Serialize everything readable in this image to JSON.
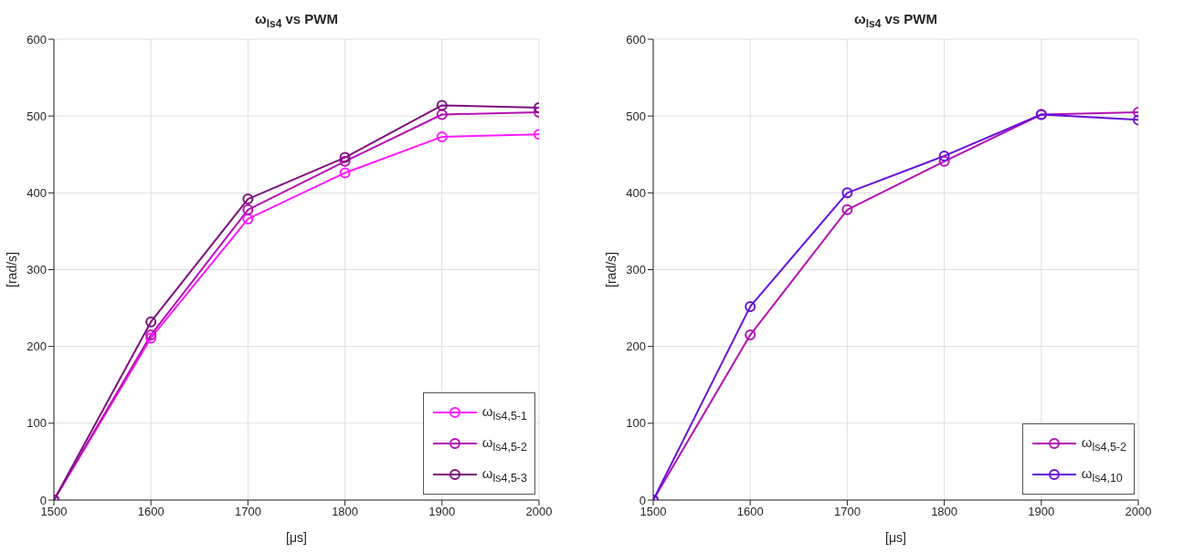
{
  "chart_data": [
    {
      "type": "line",
      "title": "ω$_{ls4}$ vs PWM",
      "xlabel": "[μs]",
      "ylabel": "[rad/s]",
      "x": [
        1500,
        1600,
        1700,
        1800,
        1900,
        2000
      ],
      "xlim": [
        1500,
        2000
      ],
      "xticks": [
        1500,
        1600,
        1700,
        1800,
        1900,
        2000
      ],
      "ylim": [
        0,
        600
      ],
      "yticks": [
        0,
        100,
        200,
        300,
        400,
        500,
        600
      ],
      "grid": true,
      "legend": "bottom right",
      "marker": "circle",
      "line_style": "solid",
      "series": [
        {
          "name": "ω$_{ls4,5-1}$",
          "color": "#ff19ff",
          "values": [
            0,
            211,
            366,
            426,
            473,
            476
          ]
        },
        {
          "name": "ω$_{ls4,5-2}$",
          "color": "#b312b3",
          "values": [
            0,
            215,
            378,
            441,
            502,
            505
          ]
        },
        {
          "name": "ω$_{ls4,5-3}$",
          "color": "#7d0f7d",
          "values": [
            0,
            232,
            392,
            446,
            514,
            511
          ]
        }
      ]
    },
    {
      "type": "line",
      "title": "ω$_{ls4}$ vs PWM",
      "xlabel": "[μs]",
      "ylabel": "[rad/s]",
      "x": [
        1500,
        1600,
        1700,
        1800,
        1900,
        2000
      ],
      "xlim": [
        1500,
        2000
      ],
      "xticks": [
        1500,
        1600,
        1700,
        1800,
        1900,
        2000
      ],
      "ylim": [
        0,
        600
      ],
      "yticks": [
        0,
        100,
        200,
        300,
        400,
        500,
        600
      ],
      "grid": true,
      "legend": "bottom right",
      "marker": "circle",
      "line_style": "solid",
      "series": [
        {
          "name": "ω$_{ls4,5-2}$",
          "color": "#b312b3",
          "values": [
            0,
            215,
            378,
            441,
            502,
            505
          ]
        },
        {
          "name": "ω$_{ls4,10}$",
          "color": "#6610d9",
          "values": [
            0,
            252,
            400,
            448,
            502,
            495
          ]
        }
      ]
    }
  ]
}
